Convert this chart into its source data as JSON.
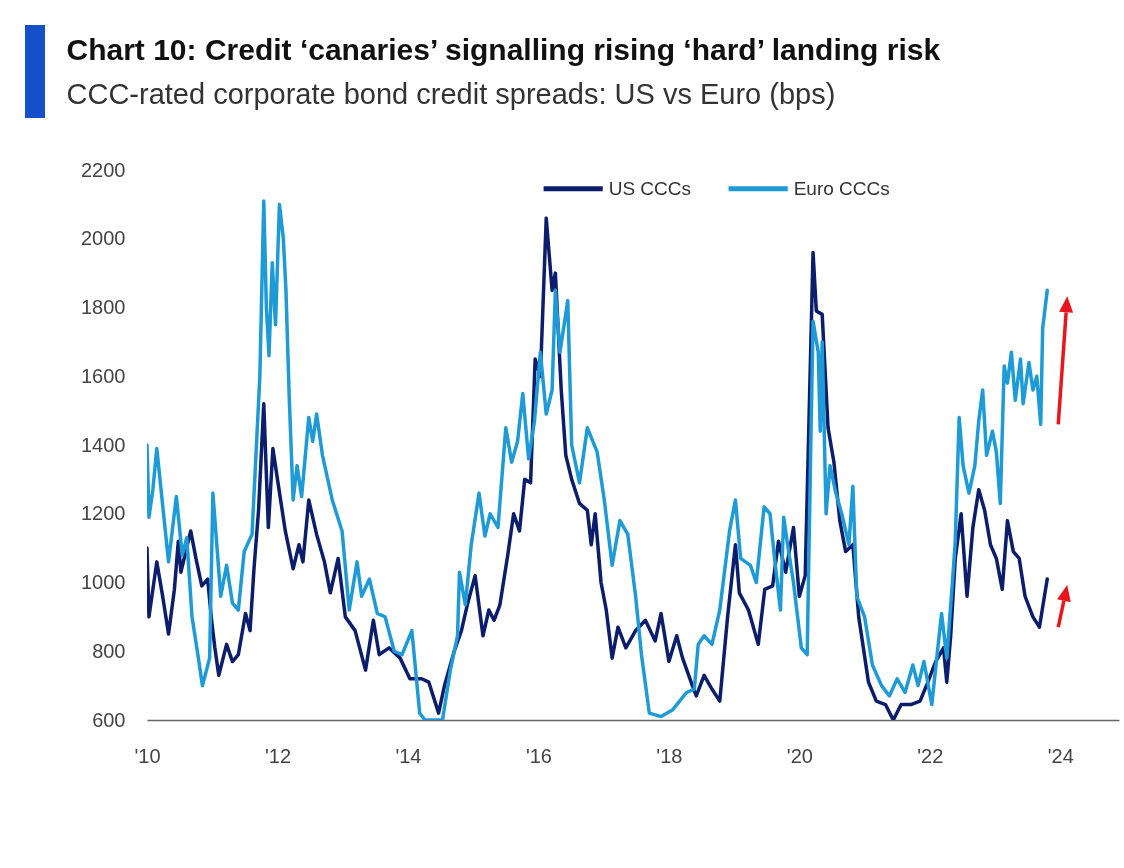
{
  "chart_data": {
    "type": "line",
    "title": "Chart 10: Credit ‘canaries’ signalling rising ‘hard’ landing risk",
    "subtitle": "CCC-rated corporate bond credit spreads: US vs Euro (bps)",
    "xlim": [
      2010,
      2024.9
    ],
    "xticks": [
      {
        "value": 2010,
        "label": "'10"
      },
      {
        "value": 2012,
        "label": "'12"
      },
      {
        "value": 2014,
        "label": "'14"
      },
      {
        "value": 2016,
        "label": "'16"
      },
      {
        "value": 2018,
        "label": "'18"
      },
      {
        "value": 2020,
        "label": "'20"
      },
      {
        "value": 2022,
        "label": "'22"
      },
      {
        "value": 2024,
        "label": "'24"
      }
    ],
    "ylim": [
      600,
      2200
    ],
    "yticks": [
      600,
      800,
      1000,
      1200,
      1400,
      1600,
      1800,
      2000,
      2200
    ],
    "legend": "top",
    "line_style": "solid",
    "series": [
      {
        "name": "US CCCs",
        "color": "#0c1d6b",
        "x": [
          2010.0,
          2010.03,
          2010.15,
          2010.24,
          2010.33,
          2010.42,
          2010.48,
          2010.52,
          2010.67,
          2010.75,
          2010.84,
          2010.93,
          2010.99,
          2011.04,
          2011.1,
          2011.22,
          2011.31,
          2011.4,
          2011.51,
          2011.58,
          2011.64,
          2011.71,
          2011.79,
          2011.86,
          2011.93,
          2012.0,
          2012.12,
          2012.24,
          2012.33,
          2012.39,
          2012.48,
          2012.6,
          2012.72,
          2012.81,
          2012.93,
          2013.04,
          2013.19,
          2013.35,
          2013.47,
          2013.56,
          2013.71,
          2013.88,
          2014.03,
          2014.21,
          2014.32,
          2014.47,
          2014.56,
          2014.71,
          2014.82,
          2014.91,
          2015.03,
          2015.15,
          2015.24,
          2015.32,
          2015.41,
          2015.53,
          2015.62,
          2015.71,
          2015.79,
          2015.88,
          2015.95,
          2016.03,
          2016.12,
          2016.21,
          2016.26,
          2016.35,
          2016.42,
          2016.51,
          2016.63,
          2016.75,
          2016.81,
          2016.87,
          2016.96,
          2017.04,
          2017.13,
          2017.22,
          2017.34,
          2017.49,
          2017.64,
          2017.79,
          2017.88,
          2018.0,
          2018.12,
          2018.21,
          2018.36,
          2018.42,
          2018.54,
          2018.66,
          2018.78,
          2018.9,
          2019.02,
          2019.08,
          2019.22,
          2019.37,
          2019.47,
          2019.59,
          2019.68,
          2019.79,
          2019.91,
          2020.0,
          2020.09,
          2020.21,
          2020.26,
          2020.35,
          2020.44,
          2020.53,
          2020.62,
          2020.71,
          2020.82,
          2020.91,
          2021.06,
          2021.18,
          2021.32,
          2021.44,
          2021.56,
          2021.71,
          2021.85,
          2021.97,
          2022.09,
          2022.21,
          2022.26,
          2022.32,
          2022.39,
          2022.48,
          2022.57,
          2022.66,
          2022.75,
          2022.84,
          2022.93,
          2023.02,
          2023.11,
          2023.19,
          2023.28,
          2023.37,
          2023.46,
          2023.58,
          2023.68,
          2023.8
        ],
        "values": [
          1100,
          900,
          1060,
          960,
          850,
          980,
          1120,
          1030,
          1150,
          1070,
          990,
          1010,
          890,
          810,
          730,
          820,
          770,
          790,
          910,
          860,
          1040,
          1210,
          1520,
          1160,
          1390,
          1300,
          1150,
          1040,
          1110,
          1060,
          1240,
          1140,
          1060,
          970,
          1070,
          900,
          860,
          745,
          890,
          790,
          810,
          780,
          720,
          720,
          710,
          620,
          700,
          800,
          860,
          935,
          1020,
          845,
          920,
          890,
          935,
          1080,
          1200,
          1150,
          1300,
          1290,
          1650,
          1600,
          2060,
          1850,
          1900,
          1560,
          1370,
          1300,
          1230,
          1210,
          1110,
          1200,
          1000,
          920,
          780,
          870,
          810,
          860,
          890,
          830,
          910,
          770,
          845,
          780,
          700,
          670,
          730,
          690,
          655,
          900,
          1110,
          970,
          920,
          820,
          980,
          990,
          1120,
          1030,
          1160,
          960,
          1020,
          1960,
          1790,
          1780,
          1450,
          1350,
          1180,
          1090,
          1110,
          900,
          710,
          655,
          645,
          600,
          645,
          645,
          655,
          710,
          770,
          810,
          710,
          845,
          1070,
          1200,
          960,
          1160,
          1270,
          1210,
          1110,
          1070,
          980,
          1180,
          1090,
          1070,
          960,
          900,
          870,
          1010
        ]
      },
      {
        "name": "Euro CCCs",
        "color": "#1e9ad6",
        "x": [
          2010.0,
          2010.03,
          2010.09,
          2010.15,
          2010.33,
          2010.45,
          2010.54,
          2010.61,
          2010.69,
          2010.78,
          2010.85,
          2010.96,
          2011.01,
          2011.13,
          2011.22,
          2011.31,
          2011.4,
          2011.49,
          2011.61,
          2011.67,
          2011.73,
          2011.79,
          2011.83,
          2011.87,
          2011.92,
          2011.97,
          2012.03,
          2012.09,
          2012.13,
          2012.18,
          2012.24,
          2012.3,
          2012.37,
          2012.48,
          2012.54,
          2012.6,
          2012.69,
          2012.84,
          2012.99,
          2013.1,
          2013.22,
          2013.29,
          2013.41,
          2013.53,
          2013.65,
          2013.79,
          2013.91,
          2014.06,
          2014.18,
          2014.26,
          2014.53,
          2014.65,
          2014.76,
          2014.79,
          2014.88,
          2014.97,
          2015.09,
          2015.18,
          2015.26,
          2015.38,
          2015.5,
          2015.59,
          2015.68,
          2015.76,
          2015.85,
          2015.94,
          2016.03,
          2016.12,
          2016.21,
          2016.26,
          2016.33,
          2016.45,
          2016.51,
          2016.63,
          2016.75,
          2016.9,
          2017.01,
          2017.13,
          2017.25,
          2017.37,
          2017.49,
          2017.58,
          2017.7,
          2017.88,
          2018.06,
          2018.27,
          2018.39,
          2018.45,
          2018.54,
          2018.66,
          2018.78,
          2018.93,
          2019.02,
          2019.1,
          2019.25,
          2019.34,
          2019.46,
          2019.55,
          2019.62,
          2019.71,
          2019.76,
          2019.82,
          2019.91,
          2020.03,
          2020.12,
          2020.18,
          2020.21,
          2020.29,
          2020.32,
          2020.35,
          2020.41,
          2020.47,
          2020.56,
          2020.65,
          2020.76,
          2020.82,
          2020.88,
          2021.0,
          2021.12,
          2021.26,
          2021.38,
          2021.5,
          2021.62,
          2021.74,
          2021.82,
          2021.91,
          2022.03,
          2022.18,
          2022.26,
          2022.35,
          2022.39,
          2022.45,
          2022.51,
          2022.6,
          2022.69,
          2022.75,
          2022.81,
          2022.87,
          2022.96,
          2023.02,
          2023.08,
          2023.14,
          2023.19,
          2023.25,
          2023.31,
          2023.39,
          2023.43,
          2023.52,
          2023.58,
          2023.64,
          2023.7,
          2023.73,
          2023.8
        ],
        "values": [
          1400,
          1190,
          1270,
          1390,
          1060,
          1250,
          1080,
          1130,
          900,
          790,
          700,
          780,
          1260,
          960,
          1050,
          940,
          920,
          1090,
          1140,
          1370,
          1600,
          2110,
          1800,
          1660,
          1930,
          1750,
          2100,
          2000,
          1850,
          1540,
          1240,
          1340,
          1250,
          1480,
          1410,
          1490,
          1370,
          1240,
          1150,
          920,
          1060,
          960,
          1010,
          910,
          900,
          800,
          790,
          860,
          620,
          600,
          600,
          745,
          845,
          1030,
          935,
          1110,
          1260,
          1135,
          1200,
          1160,
          1450,
          1350,
          1410,
          1550,
          1360,
          1470,
          1670,
          1490,
          1560,
          1850,
          1670,
          1820,
          1400,
          1290,
          1450,
          1380,
          1240,
          1050,
          1180,
          1140,
          960,
          790,
          620,
          610,
          630,
          680,
          690,
          820,
          845,
          820,
          920,
          1150,
          1240,
          1070,
          1050,
          1000,
          1220,
          1200,
          1070,
          920,
          1190,
          1110,
          1000,
          810,
          790,
          1450,
          1760,
          1670,
          1440,
          1700,
          1200,
          1340,
          1260,
          1200,
          1110,
          1280,
          960,
          900,
          760,
          700,
          670,
          720,
          680,
          760,
          700,
          770,
          645,
          910,
          780,
          1010,
          1120,
          1480,
          1340,
          1260,
          1340,
          1470,
          1560,
          1370,
          1440,
          1380,
          1230,
          1630,
          1580,
          1670,
          1530,
          1650,
          1520,
          1640,
          1560,
          1600,
          1460,
          1740,
          1850
        ]
      }
    ]
  }
}
